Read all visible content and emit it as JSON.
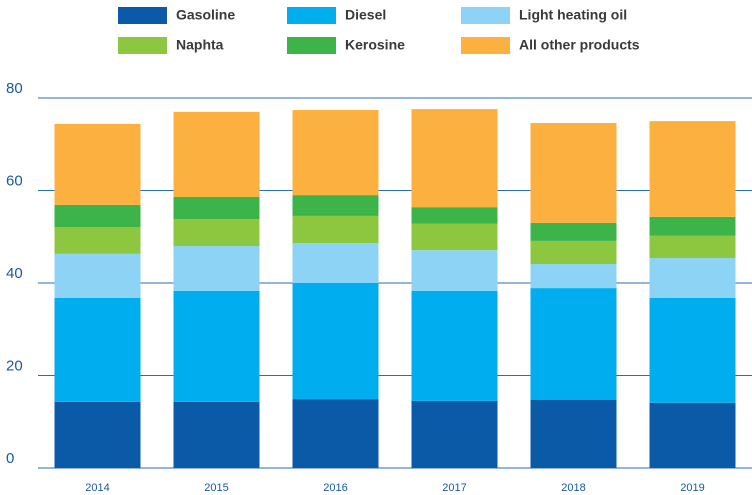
{
  "chart_data": {
    "type": "stacked_bar",
    "categories": [
      "2014",
      "2015",
      "2016",
      "2017",
      "2018",
      "2019"
    ],
    "series": [
      {
        "name": "Gasoline",
        "color": "#0a5aa8",
        "values": [
          14.3,
          14.3,
          14.9,
          14.5,
          14.7,
          14.1
        ]
      },
      {
        "name": "Diesel",
        "color": "#00aeef",
        "values": [
          22.5,
          24.0,
          25.1,
          23.8,
          24.2,
          22.7
        ]
      },
      {
        "name": "Light heating oil",
        "color": "#8dd3f5",
        "values": [
          9.5,
          9.7,
          8.6,
          8.8,
          5.2,
          8.6
        ]
      },
      {
        "name": "Naphta",
        "color": "#8dc63f",
        "values": [
          5.8,
          5.8,
          5.9,
          5.7,
          5.0,
          4.8
        ]
      },
      {
        "name": "Kerosine",
        "color": "#3cb44a",
        "values": [
          4.8,
          4.8,
          4.5,
          3.6,
          3.9,
          4.1
        ]
      },
      {
        "name": "All other products",
        "color": "#fbb040",
        "values": [
          17.5,
          18.4,
          18.4,
          21.2,
          21.6,
          20.7
        ]
      }
    ],
    "ylim": [
      0,
      80
    ],
    "yticks": [
      0,
      20,
      40,
      60,
      80
    ],
    "grid": true,
    "legend": "top"
  }
}
